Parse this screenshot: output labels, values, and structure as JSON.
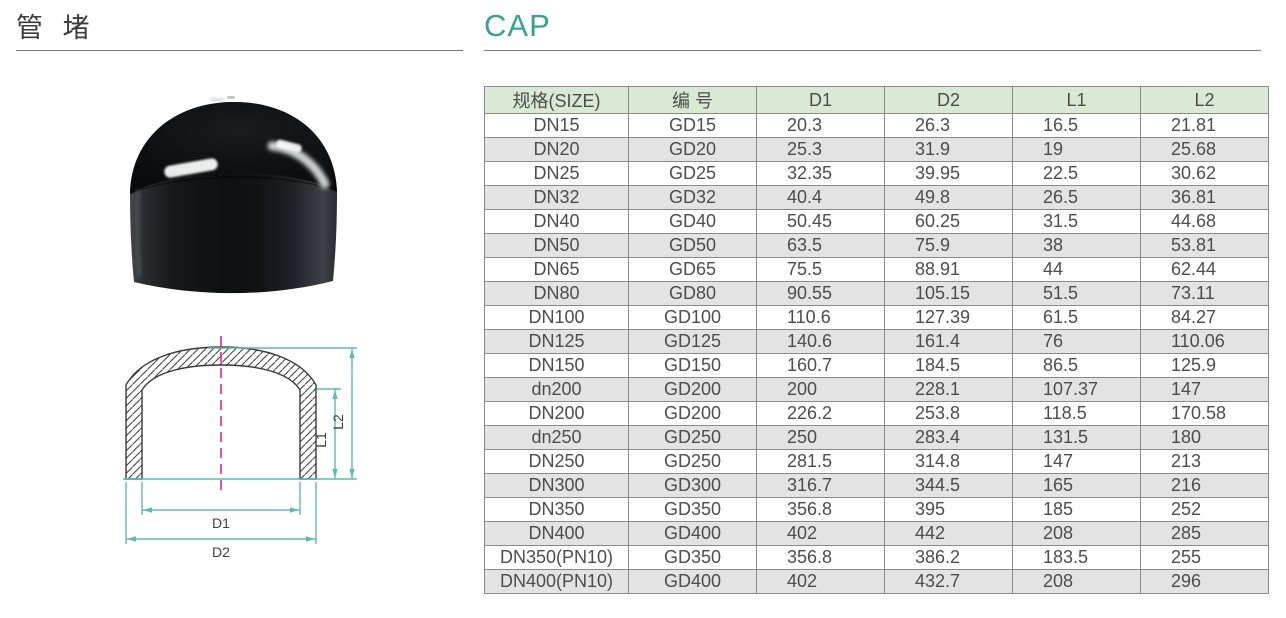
{
  "page": {
    "left_title": "管 堵",
    "right_title": "CAP"
  },
  "colors": {
    "accent_teal": "#34a392",
    "dimension_line_teal": "#5abdab",
    "centerline_magenta": "#ee2f8f",
    "table_header_bg": "#d9e9d3",
    "table_row_alt_bg": "#e3e3e3",
    "table_border": "#8a8a8a",
    "text": "#4d4d4d"
  },
  "diagram": {
    "labels": {
      "d1": "D1",
      "d2": "D2",
      "l1": "L1",
      "l2": "L2"
    }
  },
  "table": {
    "headers": [
      "规格(SIZE)",
      "编 号",
      "D1",
      "D2",
      "L1",
      "L2"
    ],
    "rows": [
      [
        "DN15",
        "GD15",
        "20.3",
        "26.3",
        "16.5",
        "21.81"
      ],
      [
        "DN20",
        "GD20",
        "25.3",
        "31.9",
        "19",
        "25.68"
      ],
      [
        "DN25",
        "GD25",
        "32.35",
        "39.95",
        "22.5",
        "30.62"
      ],
      [
        "DN32",
        "GD32",
        "40.4",
        "49.8",
        "26.5",
        "36.81"
      ],
      [
        "DN40",
        "GD40",
        "50.45",
        "60.25",
        "31.5",
        "44.68"
      ],
      [
        "DN50",
        "GD50",
        "63.5",
        "75.9",
        "38",
        "53.81"
      ],
      [
        "DN65",
        "GD65",
        "75.5",
        "88.91",
        "44",
        "62.44"
      ],
      [
        "DN80",
        "GD80",
        "90.55",
        "105.15",
        "51.5",
        "73.11"
      ],
      [
        "DN100",
        "GD100",
        "110.6",
        "127.39",
        "61.5",
        "84.27"
      ],
      [
        "DN125",
        "GD125",
        "140.6",
        "161.4",
        "76",
        "110.06"
      ],
      [
        "DN150",
        "GD150",
        "160.7",
        "184.5",
        "86.5",
        "125.9"
      ],
      [
        "dn200",
        "GD200",
        "200",
        "228.1",
        "107.37",
        "147"
      ],
      [
        "DN200",
        "GD200",
        "226.2",
        "253.8",
        "118.5",
        "170.58"
      ],
      [
        "dn250",
        "GD250",
        "250",
        "283.4",
        "131.5",
        "180"
      ],
      [
        "DN250",
        "GD250",
        "281.5",
        "314.8",
        "147",
        "213"
      ],
      [
        "DN300",
        "GD300",
        "316.7",
        "344.5",
        "165",
        "216"
      ],
      [
        "DN350",
        "GD350",
        "356.8",
        "395",
        "185",
        "252"
      ],
      [
        "DN400",
        "GD400",
        "402",
        "442",
        "208",
        "285"
      ],
      [
        "DN350(PN10)",
        "GD350",
        "356.8",
        "386.2",
        "183.5",
        "255"
      ],
      [
        "DN400(PN10)",
        "GD400",
        "402",
        "432.7",
        "208",
        "296"
      ]
    ]
  }
}
